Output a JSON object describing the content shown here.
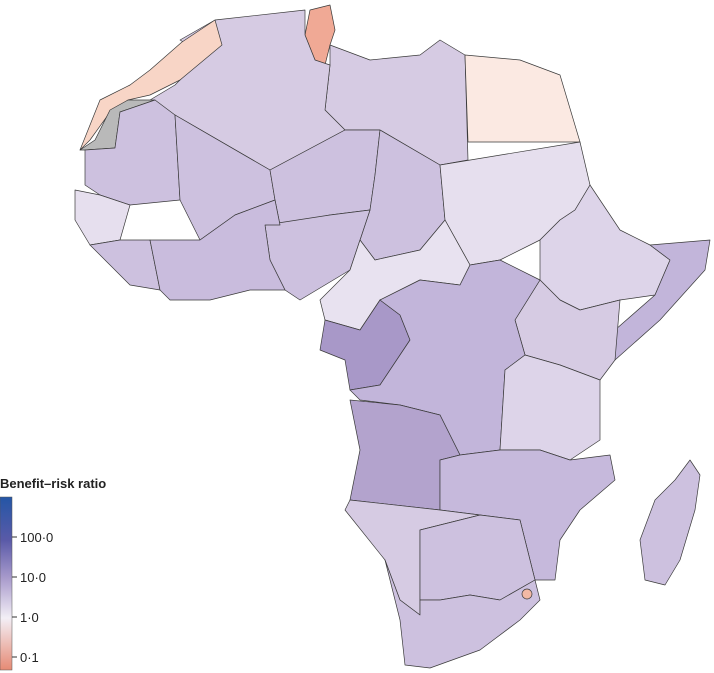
{
  "legend": {
    "title": "Benefit–risk ratio",
    "tick_labels": [
      "100·0",
      "10·0",
      "1·0",
      "0·1"
    ]
  }
}
